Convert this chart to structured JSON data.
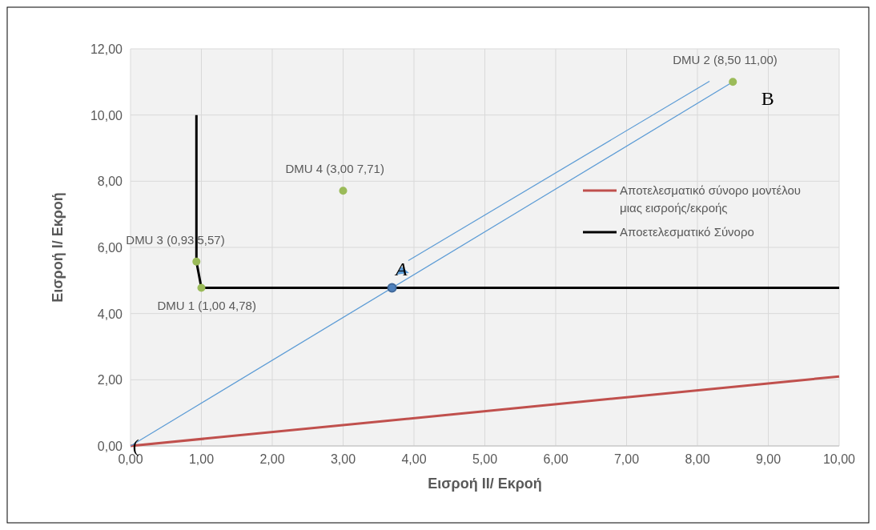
{
  "chart_data": {
    "type": "line",
    "xlabel": "Εισροή II/ Εκροή",
    "ylabel": "Εισροή I/ Εκροή",
    "xlim": [
      0,
      10
    ],
    "ylim": [
      0,
      12
    ],
    "xticks": [
      {
        "value": 0,
        "label": "0,00"
      },
      {
        "value": 1,
        "label": "1,00"
      },
      {
        "value": 2,
        "label": "2,00"
      },
      {
        "value": 3,
        "label": "3,00"
      },
      {
        "value": 4,
        "label": "4,00"
      },
      {
        "value": 5,
        "label": "5,00"
      },
      {
        "value": 6,
        "label": "6,00"
      },
      {
        "value": 7,
        "label": "7,00"
      },
      {
        "value": 8,
        "label": "8,00"
      },
      {
        "value": 9,
        "label": "9,00"
      },
      {
        "value": 10,
        "label": "10,00"
      }
    ],
    "yticks": [
      {
        "value": 0,
        "label": "0,00"
      },
      {
        "value": 2,
        "label": "2,00"
      },
      {
        "value": 4,
        "label": "4,00"
      },
      {
        "value": 6,
        "label": "6,00"
      },
      {
        "value": 8,
        "label": "8,00"
      },
      {
        "value": 10,
        "label": "10,00"
      },
      {
        "value": 12,
        "label": "12,00"
      }
    ],
    "grid": true,
    "legend": "right",
    "series": [
      {
        "name": "Αποτελεσματικό σύνορο μοντέλου μιας εισροής/εκροής",
        "color": "#c0504d",
        "x": [
          0,
          10
        ],
        "values": [
          0,
          2.1
        ]
      },
      {
        "name": "Αποετελεσματικό Σύνορο",
        "color": "#000000",
        "x": [
          0.93,
          0.93,
          1,
          10
        ],
        "values": [
          10,
          5.57,
          4.78,
          4.78
        ]
      },
      {
        "color": "#5b9bd5",
        "x": [
          0,
          8.5
        ],
        "values": [
          0,
          11
        ]
      },
      {
        "type": "scatter",
        "marker": "circle",
        "color": "#9bbb59",
        "x": [
          1,
          8.5,
          0.93,
          3
        ],
        "values": [
          4.78,
          11,
          5.57,
          7.71
        ]
      },
      {
        "type": "scatter",
        "marker": "circle",
        "color": "#4f81bd",
        "x": [
          3.69
        ],
        "values": [
          4.78
        ]
      }
    ],
    "annotations": [
      {
        "text": "DMU 1 (1,00 4,78)",
        "x": 1,
        "y": 4.78
      },
      {
        "text": "DMU 2 (8,50 11,00)",
        "x": 8.5,
        "y": 11
      },
      {
        "text": "DMU 3  (0,93 5,57)",
        "x": 0.93,
        "y": 5.57
      },
      {
        "text": "DMU 4 (3,00 7,71)",
        "x": 3,
        "y": 7.71
      },
      "B",
      "A",
      "("
    ]
  }
}
